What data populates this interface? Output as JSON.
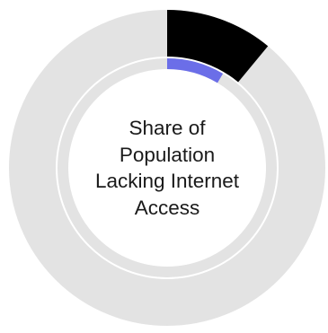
{
  "chart_data": {
    "type": "pie",
    "variant": "concentric-donut",
    "center_label_lines": [
      "Share of",
      "Population",
      "Lacking Internet",
      "Access"
    ],
    "track_color": "#e3e3e3",
    "rings": [
      {
        "value": 0.11,
        "color": "#000000",
        "track_color": "#e3e3e3"
      },
      {
        "value": 0.085,
        "color": "#6b6ee8",
        "track_color": "#e3e3e3"
      }
    ]
  }
}
